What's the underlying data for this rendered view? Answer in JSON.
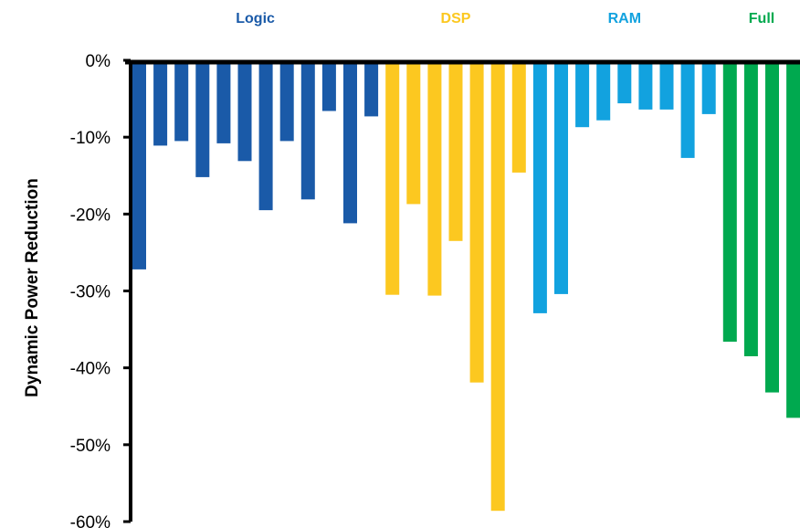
{
  "chart_data": {
    "type": "bar",
    "title": "",
    "xlabel": "",
    "ylabel": "Dynamic Power Reduction",
    "ylim": [
      -60,
      0
    ],
    "yticks": [
      0,
      -10,
      -20,
      -30,
      -40,
      -50,
      -60
    ],
    "ytick_labels": [
      "0%",
      "-10%",
      "-20%",
      "-30%",
      "-40%",
      "-50%",
      "-60%"
    ],
    "grid": false,
    "legend": "none",
    "groups": [
      {
        "name": "Logic",
        "color": "#1a5aa8",
        "values": [
          -27.2,
          -11.1,
          -10.5,
          -15.2,
          -10.8,
          -13.1,
          -19.5,
          -10.5,
          -18.1,
          -6.6,
          -21.2,
          -7.3
        ]
      },
      {
        "name": "DSP",
        "color": "#fcc820",
        "values": [
          -30.5,
          -18.7,
          -30.6,
          -23.5,
          -41.9,
          -58.6,
          -14.6
        ]
      },
      {
        "name": "RAM",
        "color": "#12a2df",
        "values": [
          -32.9,
          -30.4,
          -8.7,
          -7.8,
          -5.6,
          -6.4,
          -6.4,
          -12.7,
          -7.0
        ]
      },
      {
        "name": "Full",
        "color": "#00a94f",
        "values": [
          -36.6,
          -38.5,
          -43.2,
          -46.5
        ]
      }
    ]
  }
}
